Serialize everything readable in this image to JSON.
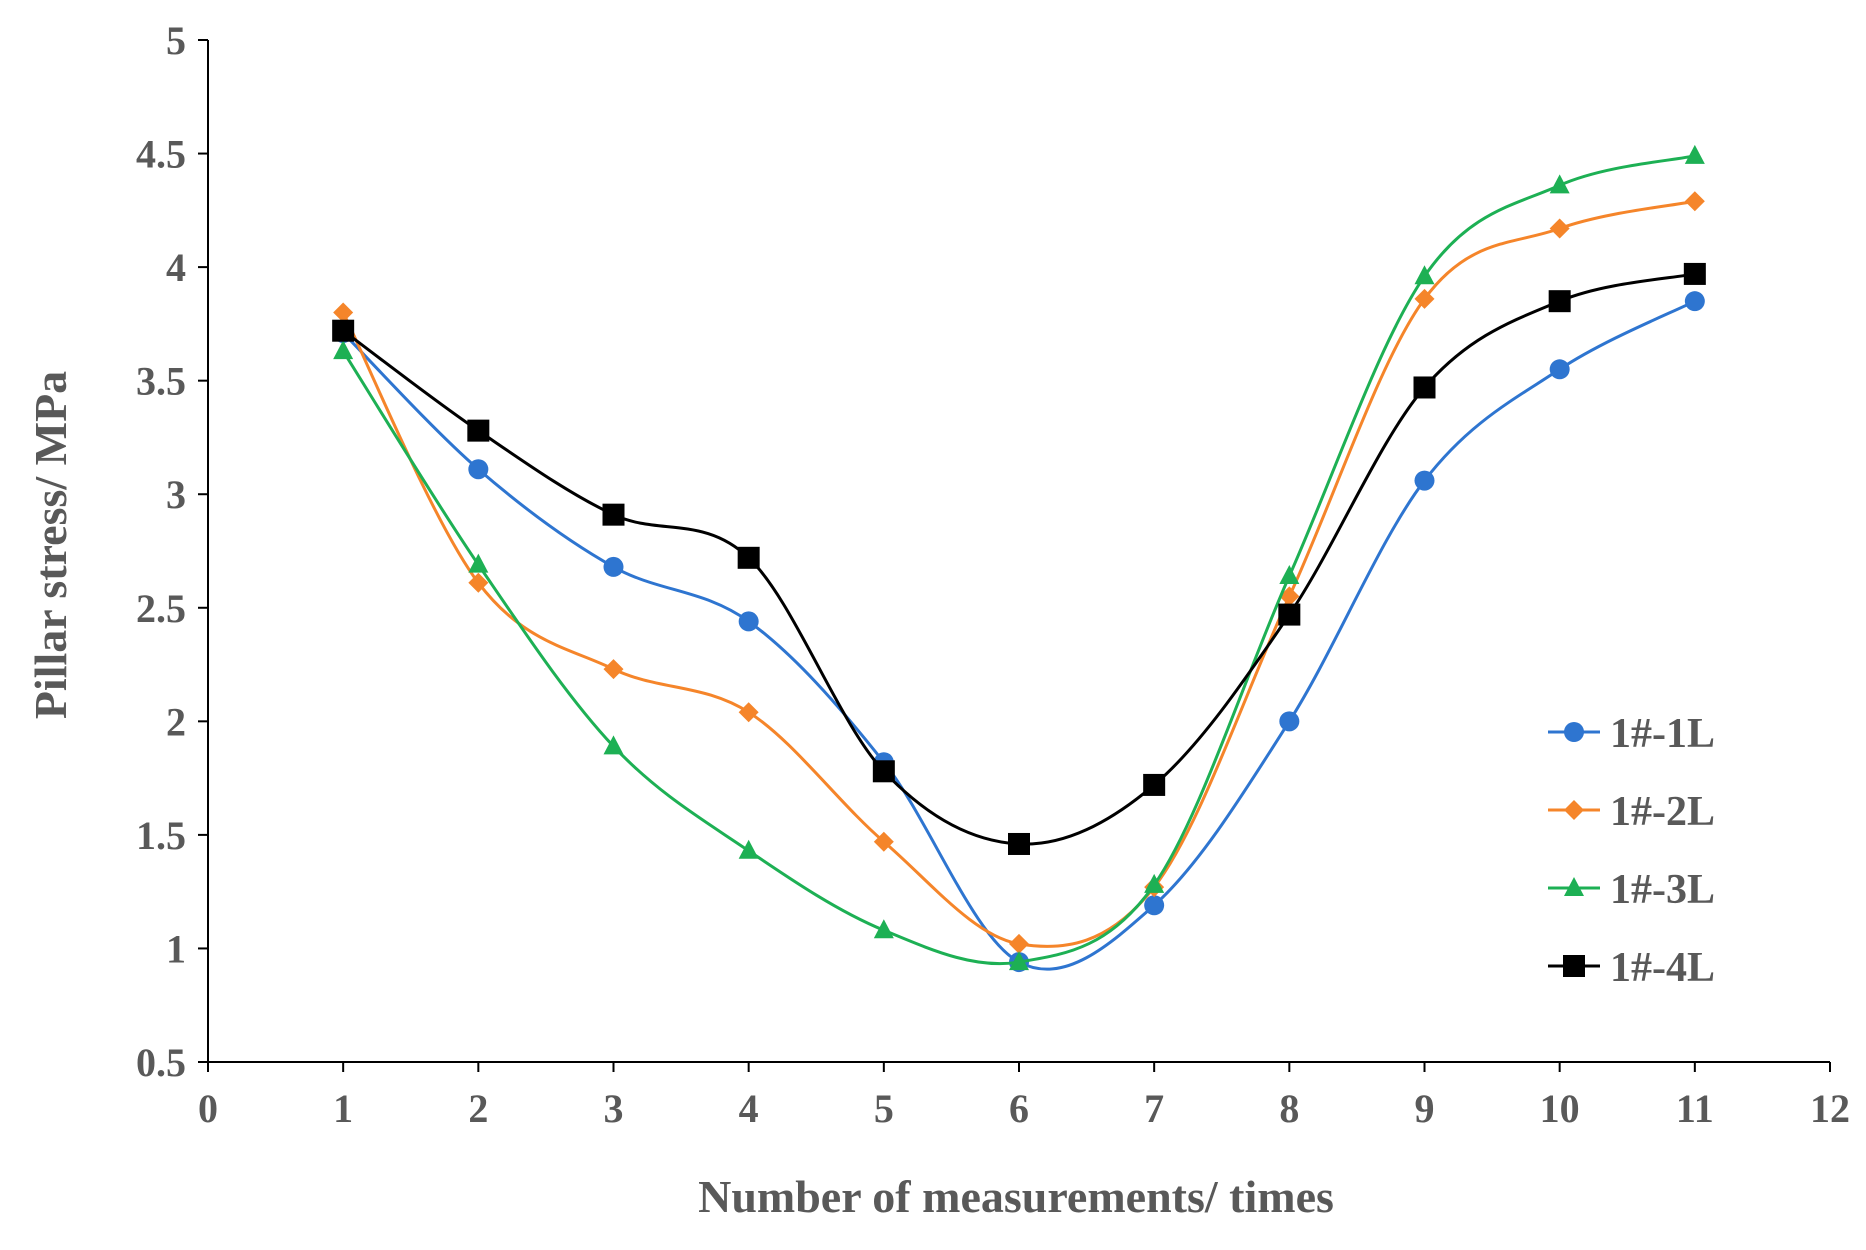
{
  "chart_data": {
    "type": "line",
    "title": "",
    "xlabel": "Number of measurements/ times",
    "ylabel": "Pillar stress/ MPa",
    "xlim": [
      0,
      12
    ],
    "ylim": [
      0.5,
      5
    ],
    "x_ticks": [
      "0",
      "1",
      "2",
      "3",
      "4",
      "5",
      "6",
      "7",
      "8",
      "9",
      "10",
      "11",
      "12"
    ],
    "y_ticks": [
      "0.5",
      "1",
      "1.5",
      "2",
      "2.5",
      "3",
      "3.5",
      "4",
      "4.5",
      "5"
    ],
    "grid": false,
    "legend_position": "right",
    "x": [
      1,
      2,
      3,
      4,
      5,
      6,
      7,
      8,
      9,
      10,
      11
    ],
    "series": [
      {
        "name": "1#-1L",
        "color": "#2E75D0",
        "marker": "circle",
        "values": [
          3.71,
          3.11,
          2.68,
          2.44,
          1.82,
          0.94,
          1.19,
          2.0,
          3.06,
          3.55,
          3.85
        ]
      },
      {
        "name": "1#-2L",
        "color": "#F5852A",
        "marker": "diamond",
        "values": [
          3.8,
          2.61,
          2.23,
          2.04,
          1.47,
          1.02,
          1.27,
          2.55,
          3.86,
          4.17,
          4.29
        ]
      },
      {
        "name": "1#-3L",
        "color": "#1DB054",
        "marker": "triangle",
        "values": [
          3.63,
          2.69,
          1.89,
          1.43,
          1.08,
          0.94,
          1.28,
          2.64,
          3.96,
          4.36,
          4.49
        ]
      },
      {
        "name": "1#-4L",
        "color": "#000000",
        "marker": "square",
        "values": [
          3.72,
          3.28,
          2.91,
          2.72,
          1.78,
          1.46,
          1.72,
          2.47,
          3.47,
          3.85,
          3.97
        ]
      }
    ]
  }
}
